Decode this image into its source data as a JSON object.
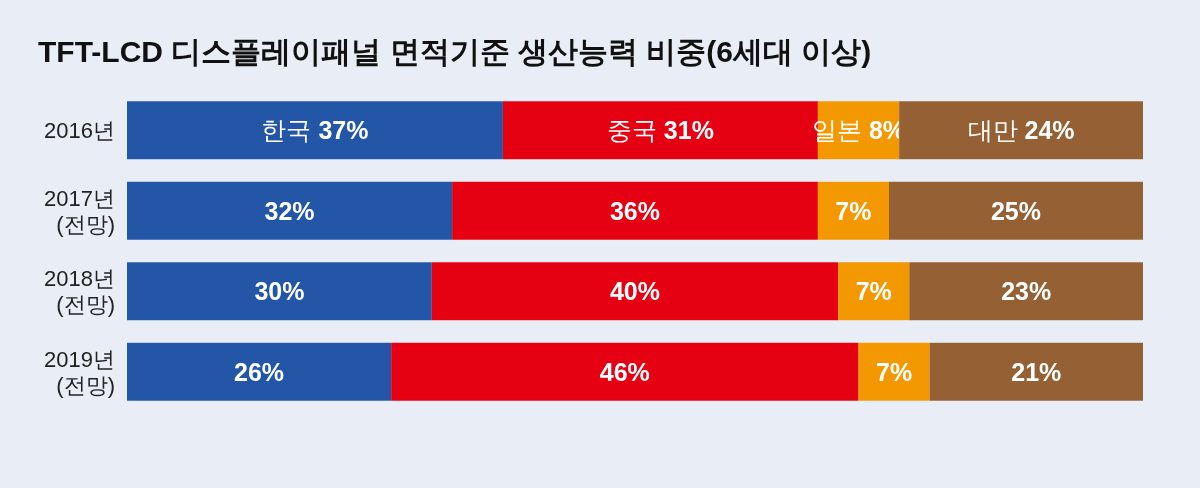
{
  "chart_data": {
    "type": "bar",
    "title": "TFT-LCD 디스플레이패널 면적기준 생산능력 비중(6세대 이상)",
    "orientation": "horizontal",
    "stacked": true,
    "xlim": [
      0,
      100
    ],
    "tick_labels": "y",
    "categories": [
      "2016년",
      "2017년\n(전망)",
      "2018년\n(전망)",
      "2019년\n(전망)"
    ],
    "series": [
      {
        "name": "한국",
        "color": "#2356a6",
        "values": [
          37,
          32,
          30,
          26
        ],
        "value_labels": [
          "37%",
          "32%",
          "30%",
          "26%"
        ]
      },
      {
        "name": "중국",
        "color": "#e50012",
        "values": [
          31,
          36,
          40,
          46
        ],
        "value_labels": [
          "31%",
          "36%",
          "40%",
          "46%"
        ]
      },
      {
        "name": "일본",
        "color": "#f39800",
        "values": [
          8,
          7,
          7,
          7
        ],
        "value_labels": [
          "8%",
          "7%",
          "7%",
          "7%"
        ]
      },
      {
        "name": "대만",
        "color": "#956134",
        "values": [
          24,
          25,
          23,
          21
        ],
        "value_labels": [
          "24%",
          "25%",
          "23%",
          "21%"
        ]
      }
    ]
  }
}
